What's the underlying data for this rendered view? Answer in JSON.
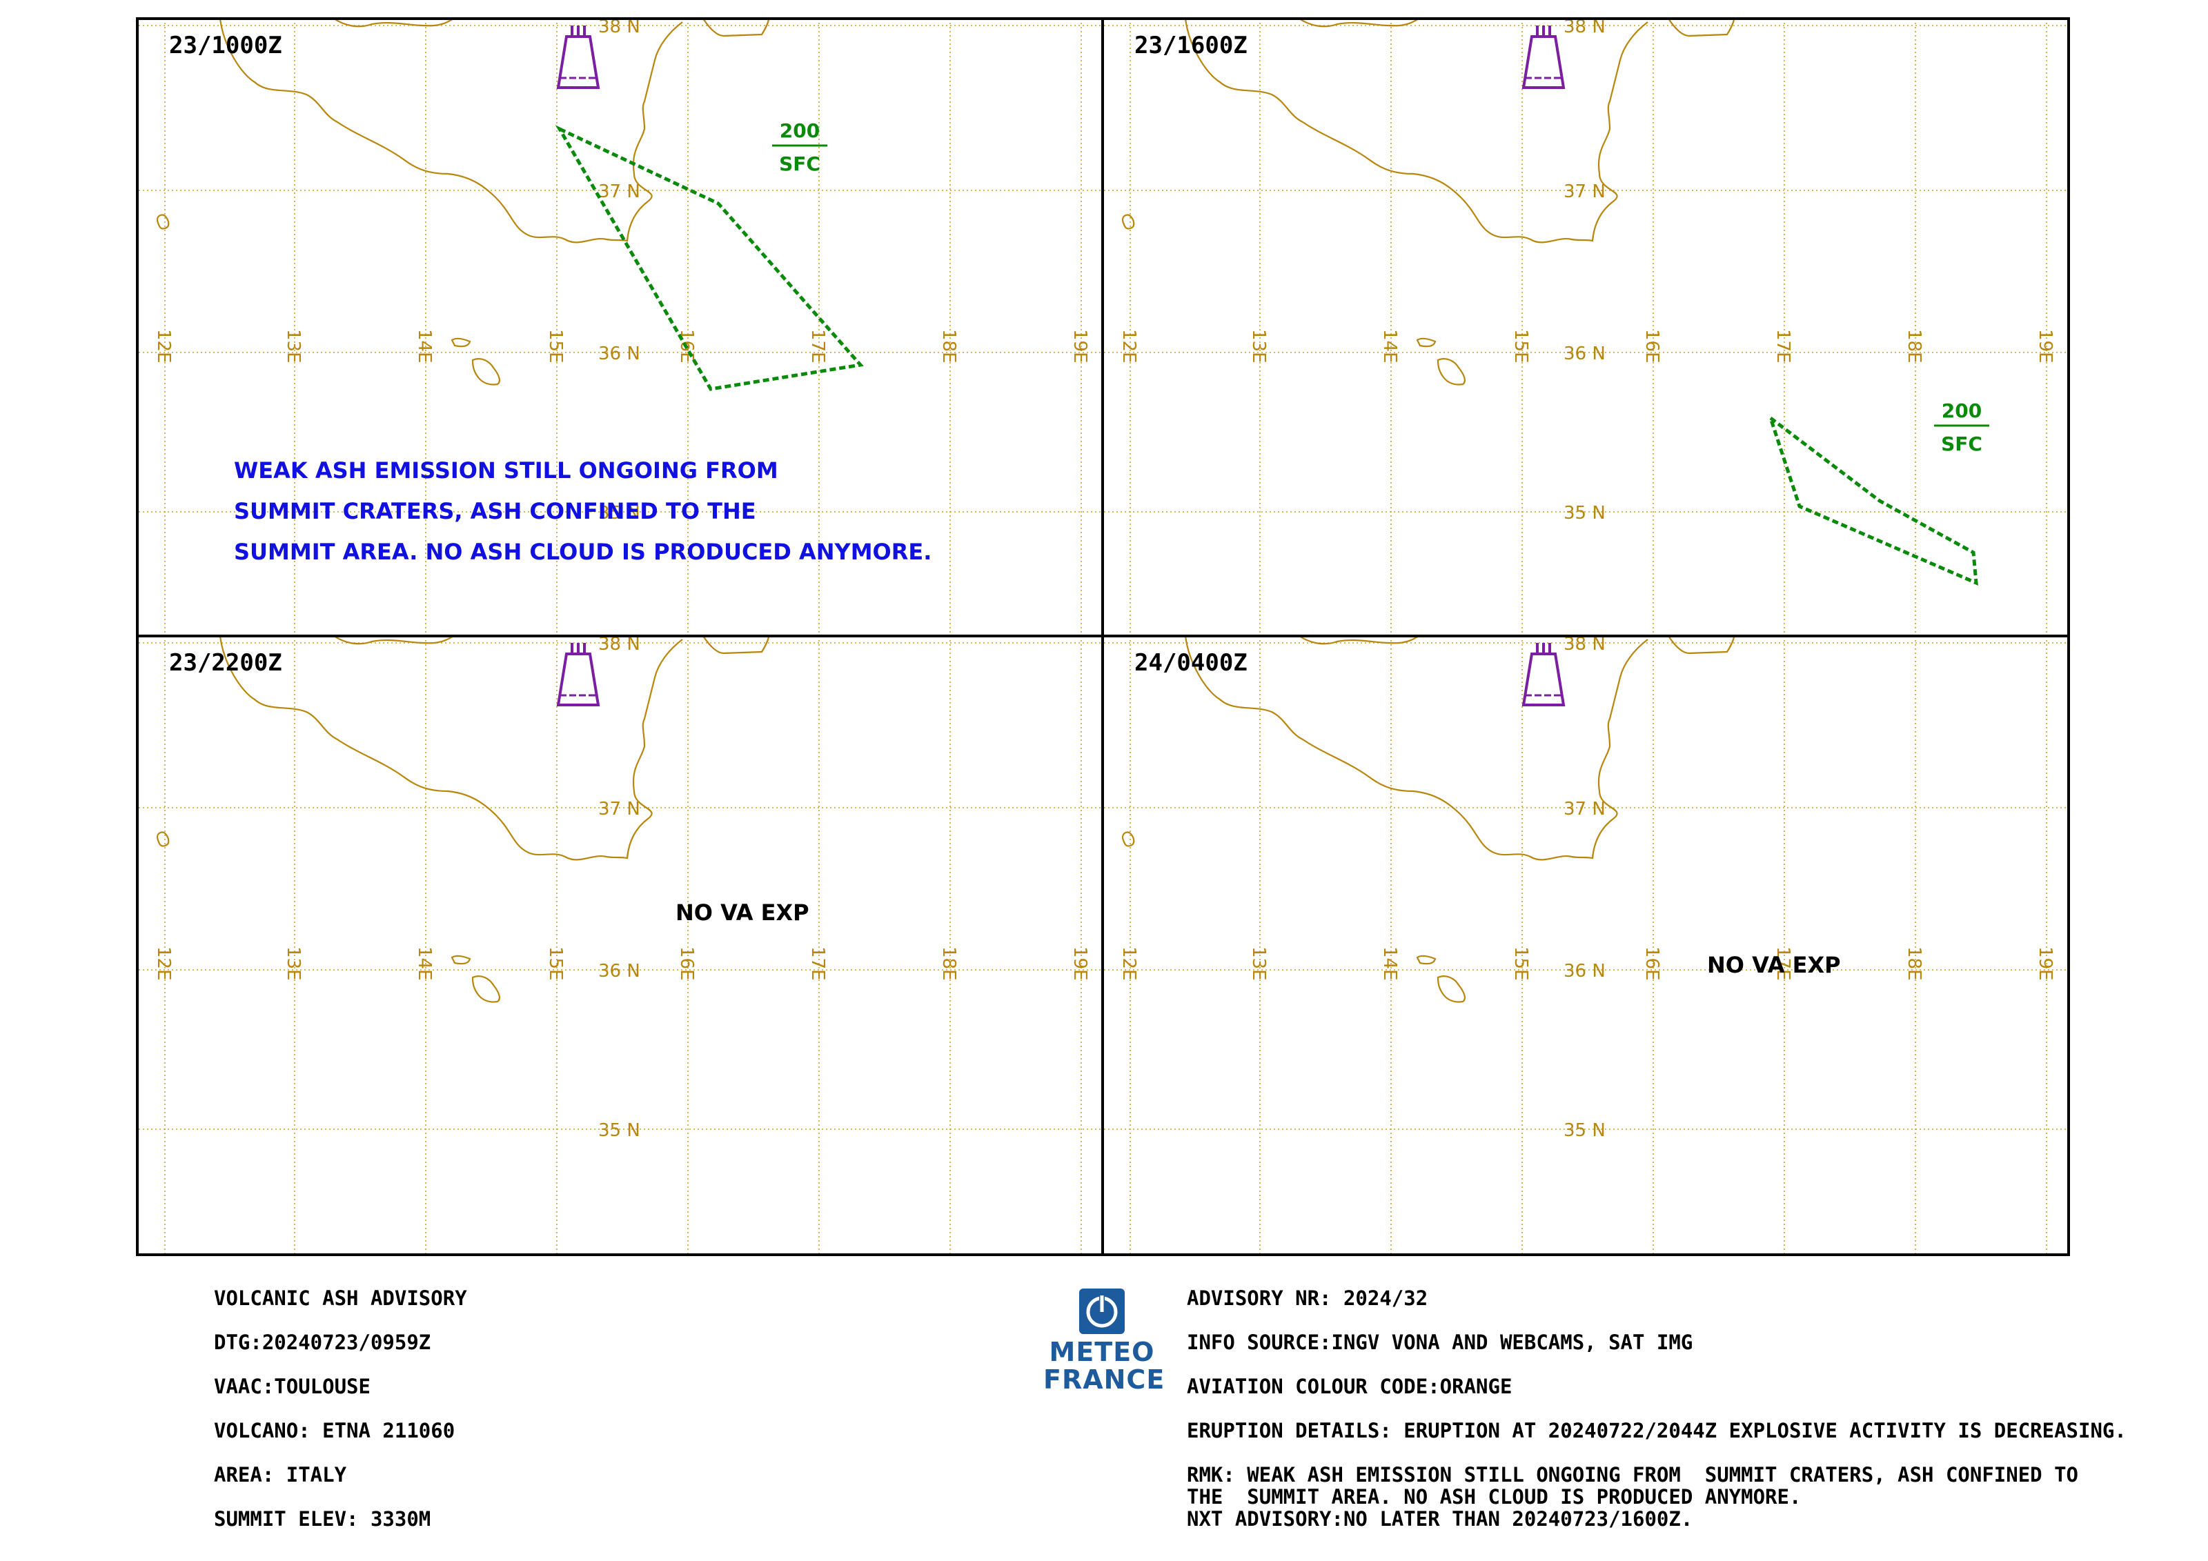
{
  "panels": [
    {
      "time": "23/1000Z",
      "annotation": {
        "top": "200",
        "bottom": "SFC"
      },
      "no_va": null,
      "remark_lines": [
        "WEAK ASH EMISSION STILL ONGOING FROM",
        "SUMMIT CRATERS, ASH CONFINED TO THE",
        "SUMMIT AREA. NO ASH CLOUD IS PRODUCED ANYMORE."
      ]
    },
    {
      "time": "23/1600Z",
      "annotation": {
        "top": "200",
        "bottom": "SFC"
      },
      "no_va": null,
      "remark_lines": []
    },
    {
      "time": "23/2200Z",
      "annotation": null,
      "no_va": "NO VA EXP",
      "remark_lines": []
    },
    {
      "time": "24/0400Z",
      "annotation": null,
      "no_va": "NO VA EXP",
      "remark_lines": []
    }
  ],
  "map": {
    "lon_labels": [
      "12E",
      "13E",
      "14E",
      "15E",
      "16E",
      "17E",
      "18E",
      "19E"
    ],
    "lat_labels": [
      "38 N",
      "37 N",
      "36 N",
      "35 N"
    ],
    "volcano_icon": "volcano-icon",
    "colors": {
      "coast": "#b8860b",
      "grid": "#c9a227",
      "ash": "#0a8a0a",
      "volcano": "#7a1fa2",
      "remark": "#1010e0"
    }
  },
  "advisory_left": [
    "VOLCANIC ASH ADVISORY",
    "DTG:20240723/0959Z",
    "VAAC:TOULOUSE",
    "VOLCANO: ETNA 211060",
    "AREA: ITALY",
    "SUMMIT ELEV: 3330M"
  ],
  "advisory_right": {
    "nr": "ADVISORY NR: 2024/32",
    "info_source": "INFO SOURCE:INGV VONA AND WEBCAMS, SAT IMG",
    "colour_code": "AVIATION COLOUR CODE:ORANGE",
    "eruption": "ERUPTION DETAILS: ERUPTION AT 20240722/2044Z EXPLOSIVE ACTIVITY IS DECREASING.",
    "rmk_1": "RMK: WEAK ASH EMISSION STILL ONGOING FROM  SUMMIT CRATERS, ASH CONFINED TO",
    "rmk_2": "THE  SUMMIT AREA. NO ASH CLOUD IS PRODUCED ANYMORE.",
    "next": "NXT ADVISORY:NO LATER THAN 20240723/1600Z."
  },
  "logo": {
    "line1": "METEO",
    "line2": "FRANCE",
    "icon": "meteo-france-logo-icon"
  }
}
